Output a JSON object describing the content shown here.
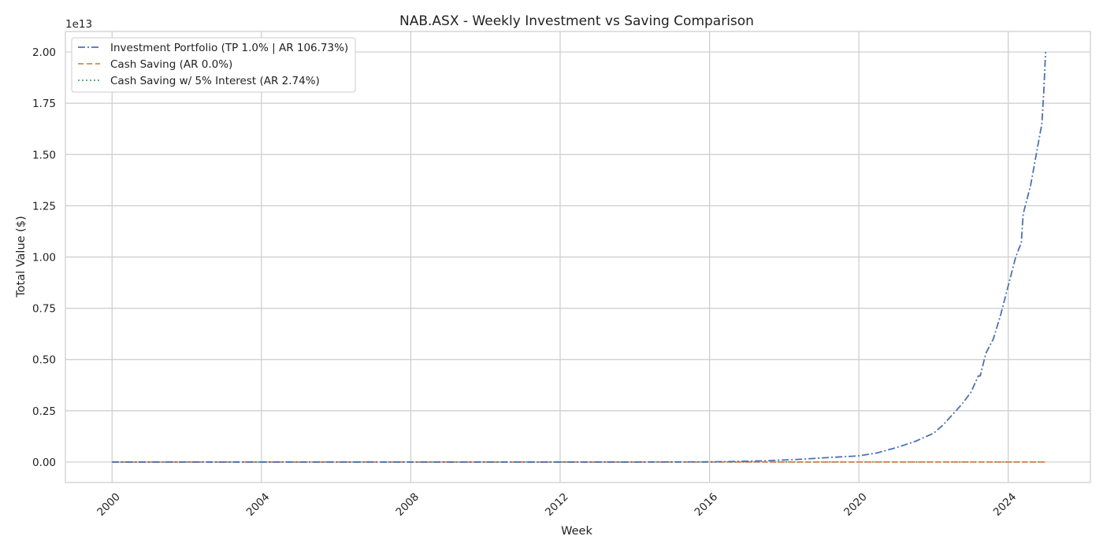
{
  "chart_data": {
    "type": "line",
    "title": "NAB.ASX - Weekly Investment vs Saving Comparison",
    "xlabel": "Week",
    "ylabel": "Total Value ($)",
    "y_offset_label": "1e13",
    "xlim": [
      1998.75,
      2026.2
    ],
    "ylim": [
      -0.1,
      2.1
    ],
    "x_ticks": [
      2000,
      2004,
      2008,
      2012,
      2016,
      2020,
      2024
    ],
    "x_tick_labels": [
      "2000",
      "2004",
      "2008",
      "2012",
      "2016",
      "2020",
      "2024"
    ],
    "y_ticks": [
      0,
      0.25,
      0.5,
      0.75,
      1.0,
      1.25,
      1.5,
      1.75,
      2.0
    ],
    "y_tick_labels": [
      "0.00",
      "0.25",
      "0.50",
      "0.75",
      "1.00",
      "1.25",
      "1.50",
      "1.75",
      "2.00"
    ],
    "x_tick_rotation": 45,
    "grid": true,
    "legend_position": "top-left",
    "series": [
      {
        "name": "Investment Portfolio (TP 1.0% | AR 106.73%)",
        "color": "#4c72b0",
        "dash": "dashdot",
        "x": [
          2000,
          2004,
          2008,
          2012,
          2014,
          2016,
          2016.5,
          2017,
          2017.5,
          2018,
          2018.5,
          2019,
          2019.5,
          2020,
          2020.5,
          2021,
          2021.5,
          2022,
          2022.25,
          2022.5,
          2022.75,
          2023,
          2023.2,
          2023.25,
          2023.4,
          2023.6,
          2023.8,
          2024,
          2024.2,
          2024.35,
          2024.4,
          2024.6,
          2024.8,
          2024.9,
          2024.95,
          2025.0
        ],
        "values": [
          0,
          0,
          0,
          0,
          0,
          0.001,
          0.002,
          0.004,
          0.006,
          0.01,
          0.014,
          0.02,
          0.025,
          0.03,
          0.045,
          0.07,
          0.1,
          0.14,
          0.18,
          0.23,
          0.28,
          0.34,
          0.42,
          0.42,
          0.53,
          0.6,
          0.72,
          0.86,
          1.0,
          1.07,
          1.21,
          1.35,
          1.55,
          1.65,
          1.8,
          2.0
        ]
      },
      {
        "name": "Cash Saving (AR 0.0%)",
        "color": "#dd8452",
        "dash": "dashed",
        "x": [
          2000,
          2025
        ],
        "values": [
          0,
          0
        ]
      },
      {
        "name": "Cash Saving w/ 5% Interest (AR 2.74%)",
        "color": "#55a868",
        "dash": "dotted",
        "x": [
          2000,
          2025
        ],
        "values": [
          0,
          0
        ]
      }
    ]
  }
}
